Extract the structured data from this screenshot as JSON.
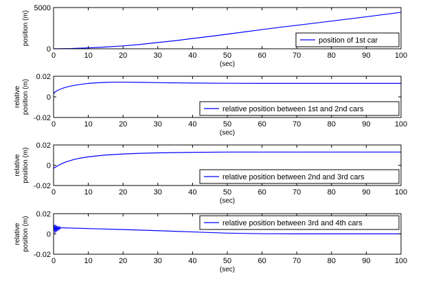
{
  "chart_data": [
    {
      "type": "line",
      "xlabel": "(sec)",
      "ylabel": "position (m)",
      "xlim": [
        0,
        100
      ],
      "ylim": [
        0,
        5000
      ],
      "xticks": [
        "0",
        "10",
        "20",
        "30",
        "40",
        "50",
        "60",
        "70",
        "80",
        "90",
        "100"
      ],
      "yticks": [
        "0",
        "5000"
      ],
      "legend_position": "bottom-right",
      "series": [
        {
          "name": "position of 1st car",
          "x": [
            0,
            5,
            10,
            15,
            20,
            25,
            30,
            35,
            40,
            45,
            50,
            55,
            60,
            65,
            70,
            75,
            80,
            85,
            90,
            95,
            100
          ],
          "y": [
            0,
            30,
            110,
            220,
            350,
            530,
            760,
            980,
            1250,
            1500,
            1770,
            2050,
            2330,
            2600,
            2850,
            3100,
            3360,
            3620,
            3880,
            4150,
            4420
          ]
        }
      ]
    },
    {
      "type": "line",
      "xlabel": "(sec)",
      "ylabel": [
        "relative",
        "position (m)"
      ],
      "xlim": [
        0,
        100
      ],
      "ylim": [
        -0.02,
        0.02
      ],
      "xticks": [
        "0",
        "10",
        "20",
        "30",
        "40",
        "50",
        "60",
        "70",
        "80",
        "90",
        "100"
      ],
      "yticks": [
        "0.02",
        "0",
        "-0.02"
      ],
      "legend_position": "bottom-right",
      "series": [
        {
          "name": "relative position between 1st and 2nd cars",
          "x": [
            0,
            0.5,
            1,
            1.5,
            2,
            3,
            4,
            6,
            8,
            10,
            12,
            15,
            18,
            20,
            25,
            30,
            40,
            50,
            60,
            70,
            80,
            90,
            100
          ],
          "y": [
            0.003,
            0.005,
            0.006,
            0.0068,
            0.0075,
            0.0088,
            0.0098,
            0.0112,
            0.0122,
            0.0131,
            0.0136,
            0.0141,
            0.0143,
            0.0143,
            0.0141,
            0.0138,
            0.0134,
            0.0132,
            0.0131,
            0.0131,
            0.0131,
            0.0131,
            0.0131
          ]
        }
      ]
    },
    {
      "type": "line",
      "xlabel": "(sec)",
      "ylabel": [
        "relative",
        "position (m)"
      ],
      "xlim": [
        0,
        100
      ],
      "ylim": [
        -0.02,
        0.02
      ],
      "xticks": [
        "0",
        "10",
        "20",
        "30",
        "40",
        "50",
        "60",
        "70",
        "80",
        "90",
        "100"
      ],
      "yticks": [
        "0.02",
        "0",
        "-0.02"
      ],
      "legend_position": "bottom-right",
      "series": [
        {
          "name": "relative position between 2nd and 3rd cars",
          "x": [
            0,
            0.5,
            1,
            1.5,
            2,
            3,
            4,
            6,
            8,
            10,
            15,
            20,
            25,
            30,
            40,
            50,
            60,
            70,
            80,
            90,
            100
          ],
          "y": [
            -0.003,
            -0.002,
            -0.001,
            0.0,
            0.001,
            0.0025,
            0.0038,
            0.0058,
            0.0072,
            0.0083,
            0.0101,
            0.0111,
            0.0118,
            0.0122,
            0.0127,
            0.013,
            0.013,
            0.013,
            0.013,
            0.013,
            0.013
          ]
        }
      ]
    },
    {
      "type": "line",
      "xlabel": "(sec)",
      "ylabel": [
        "relative",
        "position (m)"
      ],
      "xlim": [
        0,
        100
      ],
      "ylim": [
        -0.02,
        0.02
      ],
      "xticks": [
        "0",
        "10",
        "20",
        "30",
        "40",
        "50",
        "60",
        "70",
        "80",
        "90",
        "100"
      ],
      "yticks": [
        "0.02",
        "0",
        "-0.02"
      ],
      "legend_position": "top-right",
      "series": [
        {
          "name": "relative position between 3rd and 4th cars",
          "x": [
            0,
            0.2,
            0.4,
            0.6,
            0.8,
            1,
            1.2,
            1.4,
            1.6,
            1.8,
            2,
            2.5,
            3,
            5,
            10,
            20,
            30,
            40,
            50,
            60,
            70,
            80,
            90,
            100
          ],
          "y": [
            0.003,
            0.009,
            0.001,
            0.009,
            0.002,
            0.008,
            0.003,
            0.0075,
            0.004,
            0.007,
            0.0055,
            0.0062,
            0.006,
            0.0058,
            0.0053,
            0.0043,
            0.0032,
            0.002,
            0.0008,
            0.0002,
            0.0001,
            0.0001,
            0.0001,
            0.0001
          ]
        }
      ]
    }
  ]
}
